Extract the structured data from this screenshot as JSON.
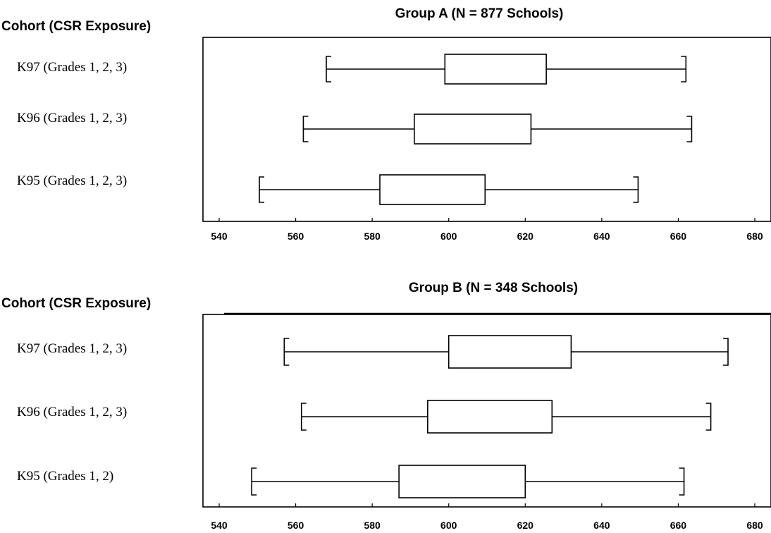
{
  "chart_data": [
    {
      "type": "boxplot",
      "title": "Group A (N = 877 Schools)",
      "ylabel": "Cohort (CSR Exposure)",
      "xlim": [
        540,
        680
      ],
      "xticks": [
        540,
        560,
        580,
        600,
        620,
        640,
        660,
        680
      ],
      "xticklabels": [
        "540",
        "560",
        "580",
        "600",
        "620",
        "640",
        "660",
        "680"
      ],
      "categories": [
        "K97  (Grades 1, 2, 3)",
        "K96  (Grades 1, 2, 3)",
        "K95  (Grades 1, 2, 3)"
      ],
      "boxes": [
        {
          "min": 568,
          "q1": 599,
          "q3": 625.5,
          "max": 662
        },
        {
          "min": 562,
          "q1": 591,
          "q3": 621.5,
          "max": 663.5
        },
        {
          "min": 550.5,
          "q1": 582,
          "q3": 609.5,
          "max": 649.5
        }
      ]
    },
    {
      "type": "boxplot",
      "title": "Group B (N = 348 Schools)",
      "ylabel": "Cohort (CSR Exposure)",
      "xlim": [
        540,
        680
      ],
      "xticks": [
        540,
        560,
        580,
        600,
        620,
        640,
        660,
        680
      ],
      "xticklabels": [
        "540",
        "560",
        "580",
        "600",
        "620",
        "640",
        "660",
        "680"
      ],
      "categories": [
        "K97  (Grades 1, 2, 3)",
        "K96  (Grades 1, 2, 3)",
        "K95  (Grades 1, 2)"
      ],
      "boxes": [
        {
          "min": 557,
          "q1": 600,
          "q3": 632,
          "max": 673
        },
        {
          "min": 561.5,
          "q1": 594.5,
          "q3": 627,
          "max": 668.5
        },
        {
          "min": 548.5,
          "q1": 587,
          "q3": 620,
          "max": 661.5
        }
      ]
    }
  ]
}
